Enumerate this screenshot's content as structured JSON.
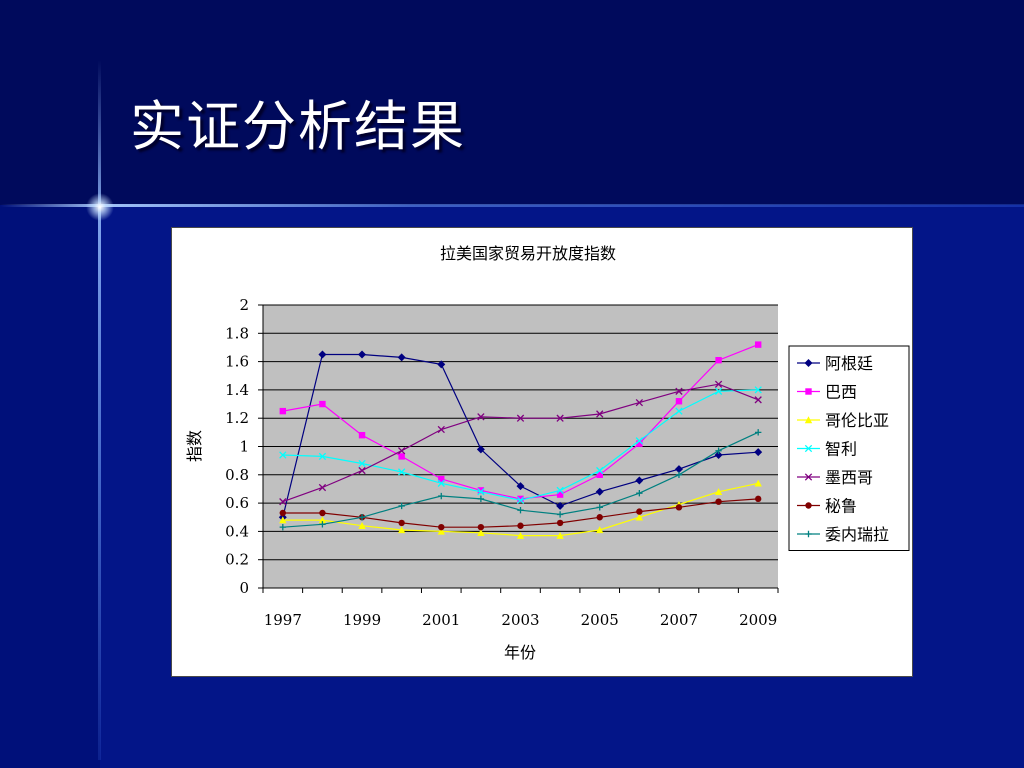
{
  "slide": {
    "title": "实证分析结果"
  },
  "colors": {
    "background": "#000c6e",
    "title_text": "#ffffff",
    "plot_area": "#c0c0c0"
  },
  "chart_data": {
    "type": "line",
    "title": "拉美国家贸易开放度指数",
    "xlabel": "年份",
    "ylabel": "指数",
    "ylim": [
      0,
      2
    ],
    "yticks": [
      "0",
      "0.2",
      "0.4",
      "0.6",
      "0.8",
      "1",
      "1.2",
      "1.4",
      "1.6",
      "1.8",
      "2"
    ],
    "x": [
      1997,
      1998,
      1999,
      2000,
      2001,
      2002,
      2003,
      2004,
      2005,
      2006,
      2007,
      2008,
      2009
    ],
    "xtick_labels": [
      "1997",
      "1999",
      "2001",
      "2003",
      "2005",
      "2007",
      "2009"
    ],
    "grid": true,
    "legend_position": "right",
    "series": [
      {
        "name": "阿根廷",
        "color": "#000080",
        "marker": "diamond",
        "values": [
          0.5,
          1.65,
          1.65,
          1.63,
          1.58,
          0.98,
          0.72,
          0.58,
          0.68,
          0.76,
          0.84,
          0.94,
          0.96
        ]
      },
      {
        "name": "巴西",
        "color": "#ff00ff",
        "marker": "square",
        "values": [
          1.25,
          1.3,
          1.08,
          0.93,
          0.77,
          0.69,
          0.63,
          0.66,
          0.8,
          1.02,
          1.32,
          1.61,
          1.72
        ]
      },
      {
        "name": "哥伦比亚",
        "color": "#ffff00",
        "marker": "triangle",
        "values": [
          0.48,
          0.48,
          0.44,
          0.41,
          0.4,
          0.39,
          0.37,
          0.37,
          0.41,
          0.5,
          0.59,
          0.68,
          0.74
        ]
      },
      {
        "name": "智利",
        "color": "#00ffff",
        "marker": "x",
        "values": [
          0.94,
          0.93,
          0.88,
          0.82,
          0.74,
          0.68,
          0.62,
          0.69,
          0.83,
          1.04,
          1.25,
          1.39,
          1.4
        ]
      },
      {
        "name": "墨西哥",
        "color": "#800080",
        "marker": "x",
        "values": [
          0.61,
          0.71,
          0.83,
          0.97,
          1.12,
          1.21,
          1.2,
          1.2,
          1.23,
          1.31,
          1.39,
          1.44,
          1.33
        ]
      },
      {
        "name": "秘鲁",
        "color": "#800000",
        "marker": "circle",
        "values": [
          0.53,
          0.53,
          0.5,
          0.46,
          0.43,
          0.43,
          0.44,
          0.46,
          0.5,
          0.54,
          0.57,
          0.61,
          0.63
        ]
      },
      {
        "name": "委内瑞拉",
        "color": "#008080",
        "marker": "plus",
        "values": [
          0.43,
          0.45,
          0.5,
          0.58,
          0.65,
          0.63,
          0.55,
          0.52,
          0.57,
          0.67,
          0.8,
          0.97,
          1.1
        ]
      }
    ]
  }
}
